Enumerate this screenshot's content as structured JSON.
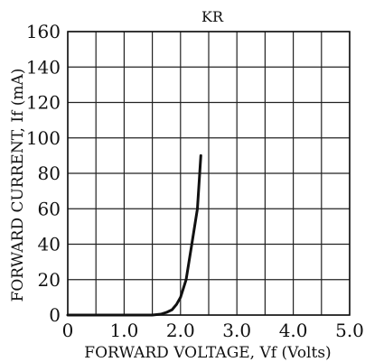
{
  "chart_data": {
    "type": "line",
    "title": "KR",
    "xlabel": "FORWARD VOLTAGE, Vf (Volts)",
    "ylabel": "FORWARD CURRENT, If (mA)",
    "xlim": [
      0,
      5.0
    ],
    "ylim": [
      0,
      160
    ],
    "xticks": [
      "0",
      "1.0",
      "2.0",
      "3.0",
      "4.0",
      "5.0"
    ],
    "yticks": [
      "0",
      "20",
      "40",
      "60",
      "80",
      "100",
      "120",
      "140",
      "160"
    ],
    "x_tick_values": [
      0,
      1,
      2,
      3,
      4,
      5
    ],
    "y_tick_values": [
      0,
      20,
      40,
      60,
      80,
      100,
      120,
      140,
      160
    ],
    "x_grid_step": 0.5,
    "y_grid_step": 20,
    "grid": true,
    "series": [
      {
        "color": "#111111",
        "x": [
          0.0,
          1.0,
          1.5,
          1.65,
          1.75,
          1.85,
          1.93,
          2.0,
          2.1,
          2.2,
          2.3,
          2.36
        ],
        "y": [
          0,
          0,
          0,
          0.5,
          1.5,
          3,
          6,
          10,
          20,
          40,
          60,
          90
        ]
      }
    ]
  }
}
